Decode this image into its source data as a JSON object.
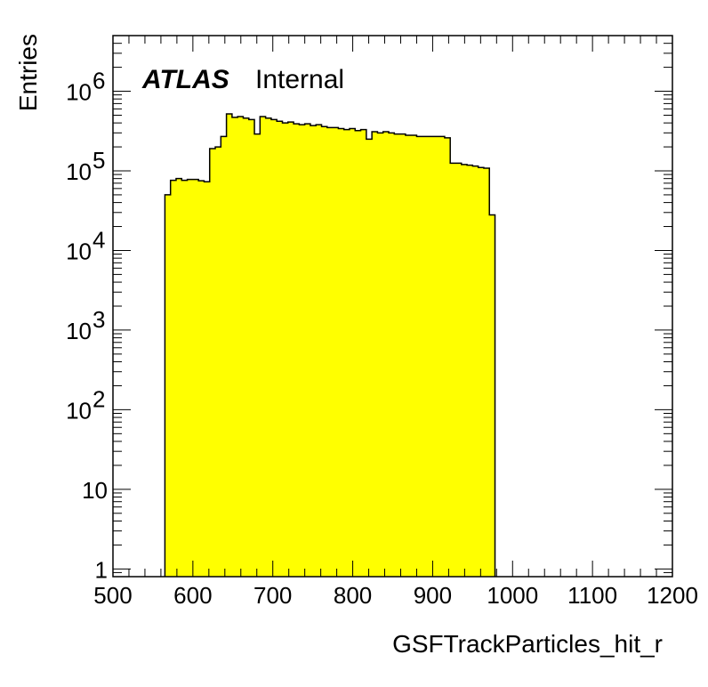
{
  "chart_data": {
    "type": "histogram",
    "xlabel": "GSFTrackParticles_hit_r",
    "ylabel": "Entries",
    "xlim": [
      500,
      1200
    ],
    "ylim": [
      0.8,
      5000000
    ],
    "yscale": "log",
    "fill_color": "#ffff00",
    "line_color": "#000000",
    "x_ticks": [
      500,
      600,
      700,
      800,
      900,
      1000,
      1100,
      1200
    ],
    "x_tick_labels": [
      "500",
      "600",
      "700",
      "800",
      "900",
      "1000",
      "1100",
      "1200"
    ],
    "y_ticks": [
      1,
      10,
      100,
      1000,
      10000,
      100000,
      1000000
    ],
    "y_tick_labels": [
      {
        "base": "1",
        "exp": ""
      },
      {
        "base": "10",
        "exp": ""
      },
      {
        "base": "10",
        "exp": "2"
      },
      {
        "base": "10",
        "exp": "3"
      },
      {
        "base": "10",
        "exp": "4"
      },
      {
        "base": "10",
        "exp": "5"
      },
      {
        "base": "10",
        "exp": "6"
      }
    ],
    "bin_width": 7,
    "bin_start": 565,
    "values": [
      50000,
      76000,
      80000,
      76000,
      78000,
      78000,
      75000,
      73000,
      190000,
      200000,
      270000,
      520000,
      470000,
      480000,
      460000,
      440000,
      290000,
      480000,
      460000,
      440000,
      420000,
      400000,
      410000,
      390000,
      380000,
      390000,
      370000,
      380000,
      360000,
      350000,
      350000,
      340000,
      330000,
      340000,
      320000,
      330000,
      250000,
      310000,
      300000,
      310000,
      300000,
      290000,
      290000,
      280000,
      280000,
      270000,
      270000,
      270000,
      270000,
      270000,
      260000,
      125000,
      125000,
      120000,
      118000,
      115000,
      110000,
      108000,
      28000
    ],
    "annotations": [
      {
        "bold": "ATLAS",
        "text": "Internal"
      }
    ]
  }
}
